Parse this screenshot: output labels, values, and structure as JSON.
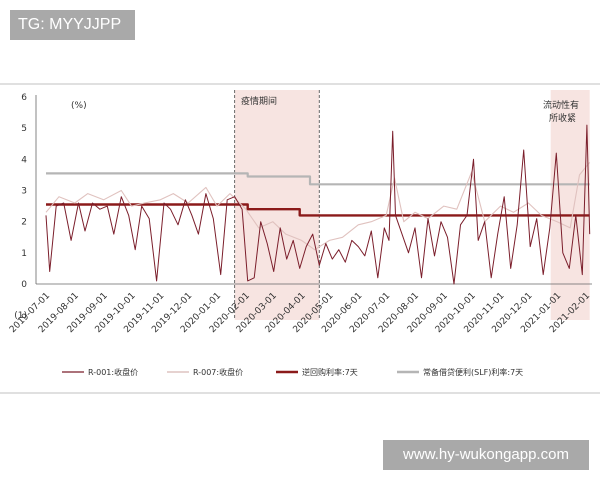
{
  "watermark_top": "TG: MYYJJPP",
  "watermark_bottom": "www.hy-wukongapp.com",
  "chart_data": {
    "type": "line",
    "title": "",
    "xlabel": "",
    "ylabel": "",
    "unit_label": "(%)",
    "ylim": [
      -1,
      6
    ],
    "y_ticks": [
      "6",
      "5",
      "4",
      "3",
      "2",
      "1",
      "0",
      "(1)"
    ],
    "x_ticks": [
      "2019-07-01",
      "2019-08-01",
      "2019-09-01",
      "2019-10-01",
      "2019-11-01",
      "2019-12-01",
      "2020-01-01",
      "2020-02-01",
      "2020-03-01",
      "2020-04-01",
      "2020-05-01",
      "2020-06-01",
      "2020-07-01",
      "2020-08-01",
      "2020-09-01",
      "2020-10-01",
      "2020-11-01",
      "2020-12-01",
      "2021-01-01",
      "2021-02-01"
    ],
    "annotations": [
      {
        "text": "疫情期间",
        "shaded_range": [
          "2020-01-20",
          "2020-04-20"
        ]
      },
      {
        "text_line1": "流动性有",
        "text_line2": "所收紧",
        "shaded_range": [
          "2020-12-25",
          "2021-02-05"
        ]
      }
    ],
    "legend": [
      "R-001:收盘价",
      "R-007:收盘价",
      "逆回购利率:7天",
      "常备借贷便利(SLF)利率:7天"
    ],
    "colors": {
      "r001": "#7b1e2b",
      "r007": "#e0c2bf",
      "repo": "#8b1a1a",
      "slf": "#b5b5b5",
      "shade": "#f7e4e1"
    },
    "series": [
      {
        "name": "常备借贷便利(SLF)利率:7天",
        "style": "step",
        "points": [
          [
            "2019-07-01",
            3.55
          ],
          [
            "2020-02-03",
            3.45
          ],
          [
            "2020-04-10",
            3.2
          ],
          [
            "2021-02-05",
            3.2
          ]
        ]
      },
      {
        "name": "逆回购利率:7天",
        "style": "step",
        "points": [
          [
            "2019-07-01",
            2.55
          ],
          [
            "2020-02-03",
            2.4
          ],
          [
            "2020-03-30",
            2.2
          ],
          [
            "2021-02-05",
            2.2
          ]
        ]
      },
      {
        "name": "R-007:收盘价",
        "style": "line",
        "points": [
          [
            "2019-07-01",
            2.3
          ],
          [
            "2019-07-15",
            2.8
          ],
          [
            "2019-08-01",
            2.6
          ],
          [
            "2019-08-15",
            2.9
          ],
          [
            "2019-09-01",
            2.7
          ],
          [
            "2019-09-20",
            3.0
          ],
          [
            "2019-10-01",
            2.5
          ],
          [
            "2019-10-15",
            2.6
          ],
          [
            "2019-11-01",
            2.7
          ],
          [
            "2019-11-15",
            2.9
          ],
          [
            "2019-12-01",
            2.6
          ],
          [
            "2019-12-20",
            3.1
          ],
          [
            "2020-01-01",
            2.5
          ],
          [
            "2020-01-15",
            2.9
          ],
          [
            "2020-02-01",
            2.4
          ],
          [
            "2020-02-15",
            1.8
          ],
          [
            "2020-03-01",
            2.0
          ],
          [
            "2020-03-15",
            1.6
          ],
          [
            "2020-04-01",
            1.4
          ],
          [
            "2020-04-15",
            1.1
          ],
          [
            "2020-05-01",
            1.4
          ],
          [
            "2020-05-15",
            1.5
          ],
          [
            "2020-06-01",
            1.9
          ],
          [
            "2020-06-15",
            2.0
          ],
          [
            "2020-07-01",
            2.2
          ],
          [
            "2020-07-10",
            3.4
          ],
          [
            "2020-07-20",
            2.0
          ],
          [
            "2020-08-01",
            2.3
          ],
          [
            "2020-08-15",
            2.1
          ],
          [
            "2020-09-01",
            2.5
          ],
          [
            "2020-09-15",
            2.4
          ],
          [
            "2020-10-01",
            3.6
          ],
          [
            "2020-10-15",
            2.0
          ],
          [
            "2020-11-01",
            2.5
          ],
          [
            "2020-11-15",
            2.3
          ],
          [
            "2020-12-01",
            2.6
          ],
          [
            "2020-12-15",
            2.2
          ],
          [
            "2021-01-01",
            2.0
          ],
          [
            "2021-01-15",
            1.8
          ],
          [
            "2021-01-25",
            3.5
          ],
          [
            "2021-02-05",
            3.9
          ]
        ]
      },
      {
        "name": "R-001:收盘价",
        "style": "line",
        "points": [
          [
            "2019-07-01",
            2.2
          ],
          [
            "2019-07-05",
            0.4
          ],
          [
            "2019-07-12",
            2.5
          ],
          [
            "2019-07-20",
            2.6
          ],
          [
            "2019-07-28",
            1.4
          ],
          [
            "2019-08-05",
            2.6
          ],
          [
            "2019-08-12",
            1.7
          ],
          [
            "2019-08-20",
            2.6
          ],
          [
            "2019-08-28",
            2.4
          ],
          [
            "2019-09-05",
            2.5
          ],
          [
            "2019-09-12",
            1.6
          ],
          [
            "2019-09-20",
            2.8
          ],
          [
            "2019-09-28",
            2.2
          ],
          [
            "2019-10-05",
            1.1
          ],
          [
            "2019-10-12",
            2.5
          ],
          [
            "2019-10-20",
            2.1
          ],
          [
            "2019-10-28",
            0.1
          ],
          [
            "2019-11-05",
            2.6
          ],
          [
            "2019-11-12",
            2.4
          ],
          [
            "2019-11-20",
            1.9
          ],
          [
            "2019-11-28",
            2.7
          ],
          [
            "2019-12-05",
            2.2
          ],
          [
            "2019-12-12",
            1.6
          ],
          [
            "2019-12-20",
            2.9
          ],
          [
            "2019-12-28",
            2.1
          ],
          [
            "2020-01-05",
            0.3
          ],
          [
            "2020-01-12",
            2.7
          ],
          [
            "2020-01-20",
            2.8
          ],
          [
            "2020-01-28",
            2.4
          ],
          [
            "2020-02-03",
            0.1
          ],
          [
            "2020-02-10",
            0.2
          ],
          [
            "2020-02-17",
            2.0
          ],
          [
            "2020-02-24",
            1.3
          ],
          [
            "2020-03-02",
            0.4
          ],
          [
            "2020-03-09",
            1.8
          ],
          [
            "2020-03-16",
            0.8
          ],
          [
            "2020-03-23",
            1.4
          ],
          [
            "2020-03-30",
            0.5
          ],
          [
            "2020-04-06",
            1.2
          ],
          [
            "2020-04-13",
            1.6
          ],
          [
            "2020-04-20",
            0.6
          ],
          [
            "2020-04-27",
            1.3
          ],
          [
            "2020-05-04",
            0.8
          ],
          [
            "2020-05-11",
            1.1
          ],
          [
            "2020-05-18",
            0.7
          ],
          [
            "2020-05-25",
            1.4
          ],
          [
            "2020-06-01",
            1.2
          ],
          [
            "2020-06-08",
            0.9
          ],
          [
            "2020-06-15",
            1.7
          ],
          [
            "2020-06-22",
            0.2
          ],
          [
            "2020-06-29",
            1.8
          ],
          [
            "2020-07-04",
            1.4
          ],
          [
            "2020-07-08",
            4.9
          ],
          [
            "2020-07-11",
            2.2
          ],
          [
            "2020-07-18",
            1.6
          ],
          [
            "2020-07-25",
            1.0
          ],
          [
            "2020-08-01",
            1.8
          ],
          [
            "2020-08-08",
            0.2
          ],
          [
            "2020-08-15",
            2.1
          ],
          [
            "2020-08-22",
            0.9
          ],
          [
            "2020-08-29",
            2.0
          ],
          [
            "2020-09-05",
            1.5
          ],
          [
            "2020-09-12",
            0.0
          ],
          [
            "2020-09-19",
            1.9
          ],
          [
            "2020-09-26",
            2.2
          ],
          [
            "2020-10-03",
            4.0
          ],
          [
            "2020-10-08",
            1.4
          ],
          [
            "2020-10-15",
            2.0
          ],
          [
            "2020-10-22",
            0.2
          ],
          [
            "2020-10-29",
            1.6
          ],
          [
            "2020-11-05",
            2.8
          ],
          [
            "2020-11-12",
            0.5
          ],
          [
            "2020-11-19",
            1.9
          ],
          [
            "2020-11-26",
            4.3
          ],
          [
            "2020-12-03",
            1.2
          ],
          [
            "2020-12-10",
            2.1
          ],
          [
            "2020-12-17",
            0.3
          ],
          [
            "2020-12-24",
            1.8
          ],
          [
            "2020-12-31",
            4.2
          ],
          [
            "2021-01-07",
            1.0
          ],
          [
            "2021-01-14",
            0.5
          ],
          [
            "2021-01-21",
            2.2
          ],
          [
            "2021-01-28",
            0.3
          ],
          [
            "2021-02-02",
            5.1
          ],
          [
            "2021-02-05",
            1.6
          ]
        ]
      }
    ]
  }
}
